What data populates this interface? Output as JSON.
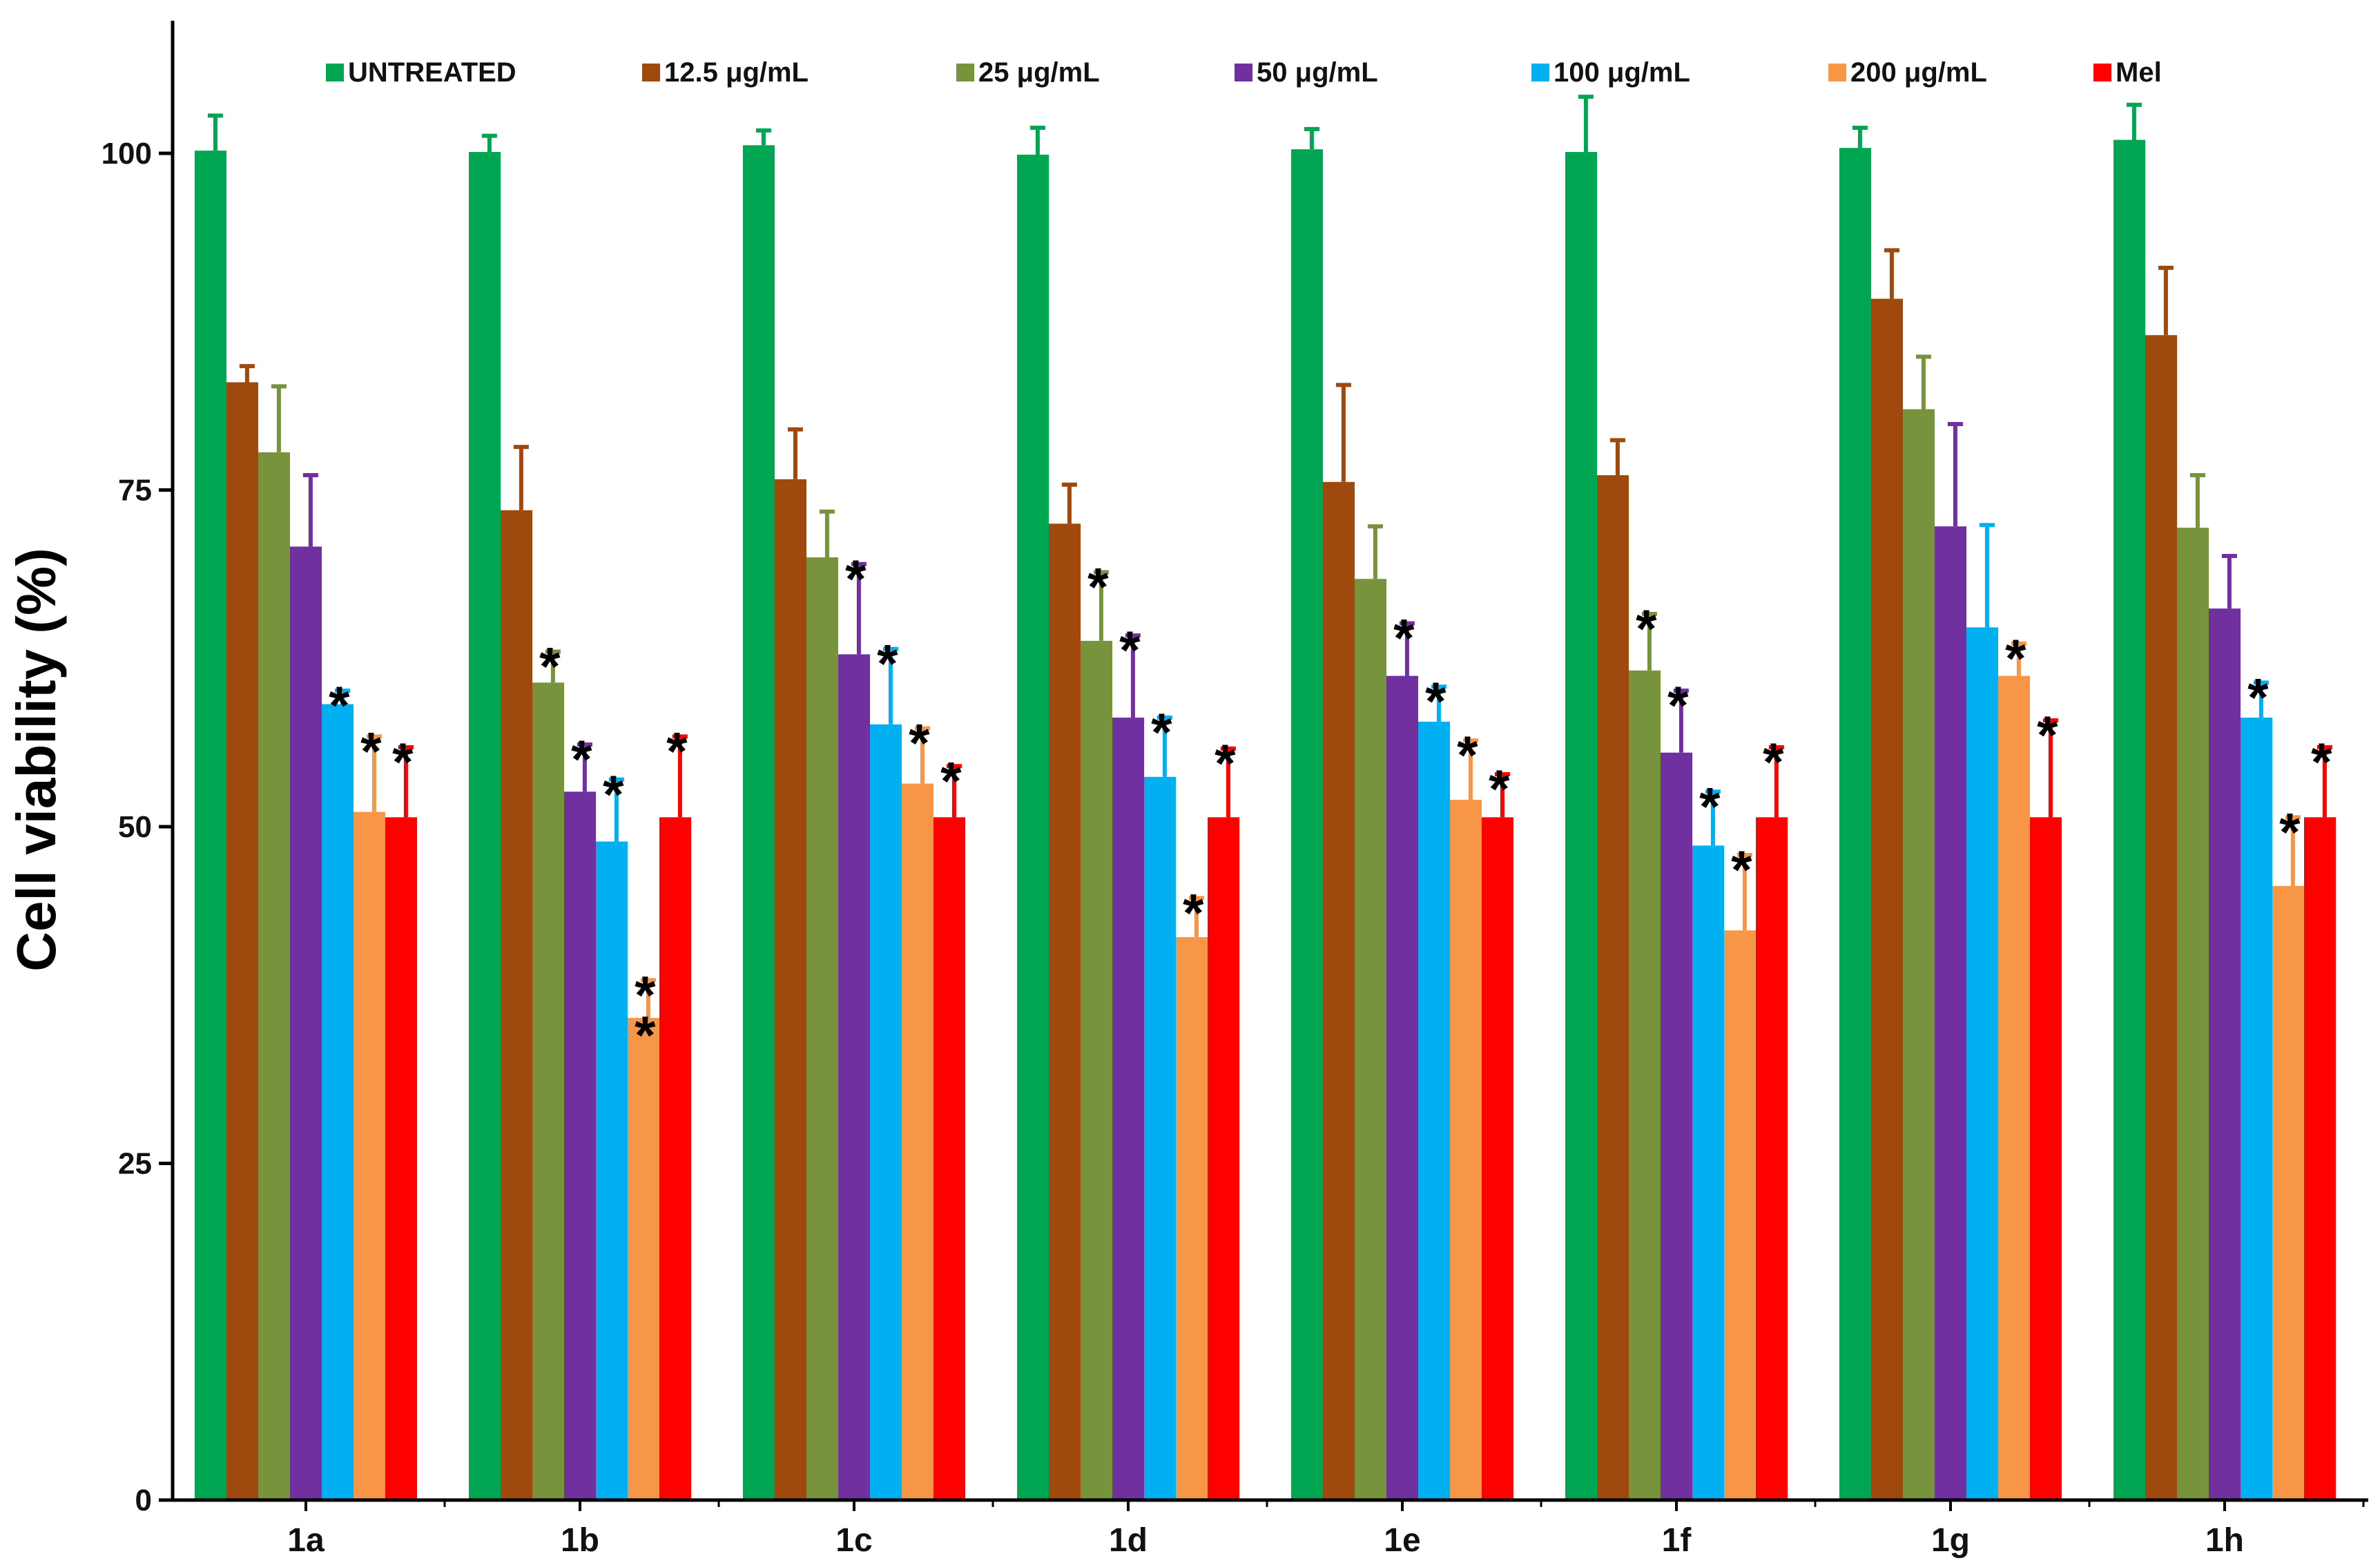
{
  "chart_data": {
    "type": "bar",
    "title": "",
    "xlabel": "",
    "ylabel": "Cell viability (%)",
    "ylim": [
      0,
      110
    ],
    "yticks": [
      0,
      25,
      50,
      75,
      100
    ],
    "grid": false,
    "legend_position": "top",
    "categories": [
      "1a",
      "1b",
      "1c",
      "1d",
      "1e",
      "1f",
      "1g",
      "1h"
    ],
    "series": [
      {
        "name": "UNTREATED",
        "color": "#00a651",
        "values": [
          100.2,
          100.1,
          100.6,
          99.9,
          100.3,
          100.1,
          100.4,
          101.0
        ],
        "errors": [
          2.6,
          1.2,
          1.1,
          2.0,
          1.5,
          4.1,
          1.5,
          2.6
        ],
        "significant": [
          false,
          false,
          false,
          false,
          false,
          false,
          false,
          false
        ]
      },
      {
        "name": "12.5 μg/mL",
        "color": "#a0490f",
        "values": [
          83.0,
          73.5,
          75.8,
          72.5,
          75.6,
          76.1,
          89.2,
          86.5
        ],
        "errors": [
          1.2,
          4.7,
          3.7,
          2.9,
          7.2,
          2.6,
          3.6,
          5.0
        ],
        "significant": [
          false,
          false,
          false,
          false,
          false,
          false,
          false,
          false
        ]
      },
      {
        "name": "25 μg/mL",
        "color": "#77933c",
        "values": [
          77.8,
          60.7,
          70.0,
          63.8,
          68.4,
          61.6,
          81.0,
          72.2
        ],
        "errors": [
          4.9,
          2.3,
          3.4,
          5.1,
          3.9,
          4.2,
          3.9,
          3.9
        ],
        "significant": [
          false,
          true,
          false,
          true,
          false,
          true,
          false,
          false
        ]
      },
      {
        "name": "50 μg/mL",
        "color": "#7030a0",
        "values": [
          70.8,
          52.6,
          62.8,
          58.1,
          61.2,
          55.5,
          72.3,
          66.2
        ],
        "errors": [
          5.3,
          3.5,
          6.7,
          6.1,
          3.9,
          4.6,
          7.6,
          3.9
        ],
        "significant": [
          false,
          true,
          true,
          true,
          true,
          true,
          false,
          false
        ]
      },
      {
        "name": "100 μg/mL",
        "color": "#00b0f0",
        "values": [
          59.1,
          48.9,
          57.6,
          53.7,
          57.8,
          48.6,
          64.8,
          58.1
        ],
        "errors": [
          1.0,
          4.6,
          5.6,
          4.4,
          2.6,
          4.0,
          7.6,
          2.6
        ],
        "significant": [
          true,
          true,
          true,
          true,
          true,
          true,
          false,
          true
        ]
      },
      {
        "name": "200 μg/mL",
        "color": "#f79646",
        "values": [
          51.1,
          35.8,
          53.2,
          41.8,
          52.0,
          42.3,
          61.2,
          45.6
        ],
        "errors": [
          5.6,
          2.8,
          4.1,
          2.9,
          4.4,
          5.6,
          2.4,
          5.1
        ],
        "significant": [
          true,
          true,
          true,
          true,
          true,
          true,
          true,
          true
        ]
      },
      {
        "name": "Mel",
        "color": "#ff0000",
        "values": [
          50.7,
          50.7,
          50.7,
          50.7,
          50.7,
          50.7,
          50.7,
          50.7
        ],
        "errors": [
          5.2,
          6.0,
          3.8,
          5.1,
          3.2,
          5.2,
          7.2,
          5.2
        ],
        "significant": [
          true,
          true,
          true,
          true,
          true,
          true,
          true,
          true
        ]
      }
    ],
    "double_marks": [
      {
        "category": "1b",
        "series": "200 μg/mL"
      }
    ],
    "significance_symbol": "*"
  }
}
